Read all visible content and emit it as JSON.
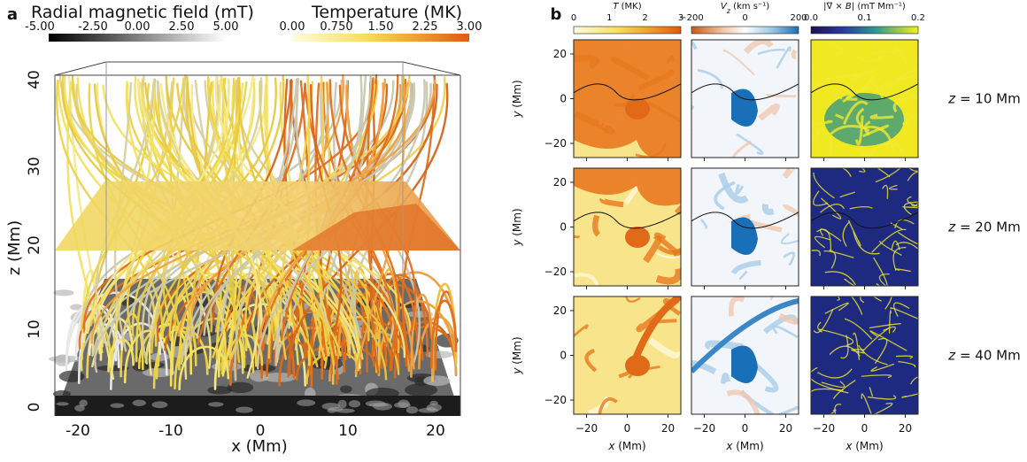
{
  "panel_a": {
    "label": "a",
    "colorbars": [
      {
        "title": "Radial magnetic field (mT)",
        "ticks": [
          "-5.00",
          "-2.50",
          "0.00",
          "2.50",
          "5.00"
        ]
      },
      {
        "title": "Temperature (MK)",
        "ticks": [
          "0.00",
          "0.750",
          "1.50",
          "2.25",
          "3.00"
        ]
      }
    ],
    "xticks": [
      "-20",
      "-10",
      "0",
      "10",
      "20"
    ],
    "xlabel": "x (Mm)",
    "zticks": [
      "0",
      "10",
      "20",
      "30",
      "40"
    ],
    "zlabel": "z (Mm)"
  },
  "panel_b": {
    "label": "b",
    "colorbars": [
      {
        "title": [
          "T",
          " (MK)"
        ],
        "ticks": [
          "0",
          "1",
          "2",
          "3"
        ]
      },
      {
        "title": [
          "V",
          "z",
          " (km s⁻¹)"
        ],
        "ticks": [
          "−200",
          "0",
          "200"
        ]
      },
      {
        "title": [
          "|∇ × B|",
          " (mT Mm⁻¹)"
        ],
        "ticks": [
          "0.0",
          "0.1",
          "0.2"
        ]
      }
    ],
    "rows": [
      [
        "z",
        " = 10 Mm"
      ],
      [
        "z",
        " = 20 Mm"
      ],
      [
        "z",
        " = 40 Mm"
      ]
    ],
    "yticks": [
      "20",
      "0",
      "−20"
    ],
    "ylabel": [
      "y",
      " (Mm)"
    ],
    "xticks": [
      "−20",
      "0",
      "20"
    ],
    "xlabel": [
      "x",
      " (Mm)"
    ]
  }
}
